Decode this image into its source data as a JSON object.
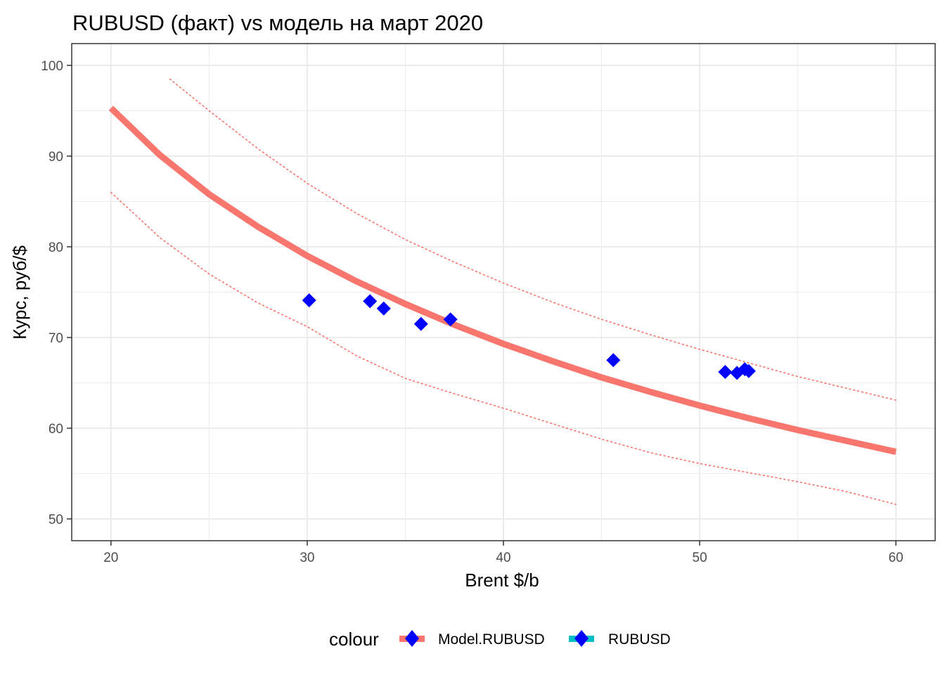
{
  "chart_data": {
    "type": "line",
    "title": "RUBUSD (факт) vs модель на март 2020",
    "xlabel": "Brent $/b",
    "ylabel": "Курс, руб/$",
    "xlim": [
      18,
      62
    ],
    "ylim": [
      47.6,
      102.4
    ],
    "x_ticks": [
      20,
      30,
      40,
      50,
      60
    ],
    "y_ticks": [
      50,
      60,
      70,
      80,
      90,
      100
    ],
    "grid": true,
    "legend_position": "bottom",
    "legend": {
      "title": "colour",
      "entries": [
        {
          "label": "Model.RUBUSD",
          "color": "#F8766D"
        },
        {
          "label": "RUBUSD",
          "color": "#00BFC4"
        }
      ]
    },
    "series": [
      {
        "name": "Model.RUBUSD",
        "kind": "line",
        "color": "#F8766D",
        "x": [
          20,
          22.5,
          25,
          27.5,
          30,
          32.5,
          35,
          37.5,
          40,
          42.5,
          45,
          47.5,
          50,
          52.5,
          55,
          57.5,
          60
        ],
        "y": [
          95.3,
          90.1,
          85.8,
          82.2,
          79.0,
          76.2,
          73.7,
          71.4,
          69.3,
          67.4,
          65.6,
          64.0,
          62.5,
          61.1,
          59.8,
          58.6,
          57.4
        ]
      },
      {
        "kind": "upper-band",
        "color": "#F8766D",
        "x": [
          23,
          25,
          27.5,
          30,
          32.5,
          35,
          37.5,
          40,
          42.5,
          45,
          47.5,
          50,
          52.5,
          55,
          57.5,
          60
        ],
        "y": [
          98.5,
          95.0,
          90.8,
          87.0,
          83.7,
          80.8,
          78.3,
          76.0,
          73.9,
          72.0,
          70.3,
          68.7,
          67.2,
          65.7,
          64.4,
          63.1
        ]
      },
      {
        "kind": "lower-band",
        "color": "#F8766D",
        "x": [
          20,
          22.5,
          25,
          27.5,
          30,
          32.5,
          35,
          37.5,
          40,
          42.5,
          45,
          47.5,
          50,
          52.5,
          55,
          57.5,
          60
        ],
        "y": [
          86.0,
          81.0,
          77.0,
          73.8,
          71.2,
          68.0,
          65.5,
          63.8,
          62.2,
          60.5,
          58.8,
          57.3,
          56.1,
          55.1,
          54.1,
          53.0,
          51.6
        ]
      },
      {
        "name": "RUBUSD",
        "kind": "points",
        "color": "#0000FF",
        "x": [
          30.1,
          33.2,
          33.9,
          35.8,
          37.3,
          45.6,
          51.3,
          51.9,
          52.3,
          52.5
        ],
        "y": [
          74.1,
          74.0,
          73.2,
          71.5,
          72.0,
          67.5,
          66.2,
          66.1,
          66.5,
          66.3
        ]
      }
    ]
  }
}
